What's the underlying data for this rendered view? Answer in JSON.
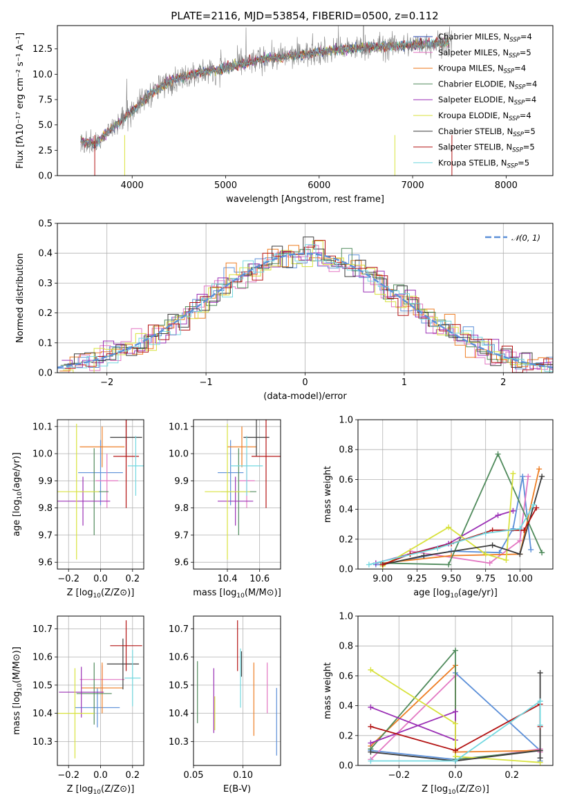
{
  "chart_data": [
    {
      "id": "spectrum",
      "type": "line",
      "title": "PLATE=2116, MJD=53854, FIBERID=0500, z=0.112",
      "xlabel": "wavelength [Angstrom, rest frame]",
      "ylabel": "Flux [fλ10⁻¹⁷ erg cm⁻² s⁻¹ A⁻¹]",
      "xlim": [
        3200,
        8500
      ],
      "ylim": [
        0,
        14.8
      ],
      "xticks": [
        4000,
        5000,
        6000,
        7000,
        8000
      ],
      "yticks": [
        0.0,
        2.5,
        5.0,
        7.5,
        10.0,
        12.5
      ],
      "ytick_labels": [
        "0.0",
        "2.5",
        "5.0",
        "7.5",
        "10.0",
        "12.5"
      ],
      "continuum": {
        "x": [
          3450,
          3600,
          3800,
          4000,
          4200,
          4400,
          4600,
          4800,
          5000,
          5200,
          5400,
          5600,
          5800,
          6000,
          6200,
          6400,
          6600,
          6800,
          7000,
          7200,
          7400
        ],
        "y": [
          3.4,
          3.1,
          4.8,
          6.4,
          8.1,
          9.3,
          9.9,
          10.3,
          10.6,
          11.1,
          11.5,
          11.7,
          11.9,
          12.2,
          12.4,
          12.6,
          12.7,
          12.8,
          12.9,
          13.0,
          13.1
        ]
      },
      "legend": {
        "placement": "upper right",
        "entries": [
          {
            "pre": "Chabrier MILES, N",
            "sub": "SSP",
            "post": "=4",
            "color": "#1f3fa8"
          },
          {
            "pre": "Salpeter MILES, N",
            "sub": "SSP",
            "post": "=5",
            "color": "#e377c2"
          },
          {
            "pre": "Kroupa MILES, N",
            "sub": "SSP",
            "post": "=4",
            "color": "#ee7d22"
          },
          {
            "pre": "Chabrier ELODIE, N",
            "sub": "SSP",
            "post": "=4",
            "color": "#4f8a5b"
          },
          {
            "pre": "Salpeter ELODIE, N",
            "sub": "SSP",
            "post": "=4",
            "color": "#9a2fb5"
          },
          {
            "pre": "Kroupa ELODIE, N",
            "sub": "SSP",
            "post": "=4",
            "color": "#d8e23c"
          },
          {
            "pre": "Chabrier STELIB, N",
            "sub": "SSP",
            "post": "=5",
            "color": "#3a3a3a"
          },
          {
            "pre": "Salpeter STELIB, N",
            "sub": "SSP",
            "post": "=5",
            "color": "#b31212"
          },
          {
            "pre": "Kroupa STELIB, N",
            "sub": "SSP",
            "post": "=5",
            "color": "#72d8e0"
          }
        ]
      }
    },
    {
      "id": "residuals",
      "type": "line",
      "xlabel": "(data-model)/error",
      "ylabel": "Normed distribution",
      "xlim": [
        -2.5,
        2.5
      ],
      "ylim": [
        0,
        0.5
      ],
      "xticks": [
        -2,
        -1,
        0,
        1,
        2
      ],
      "xtick_labels": [
        "−2",
        "−1",
        "0",
        "1",
        "2"
      ],
      "yticks": [
        0.0,
        0.1,
        0.2,
        0.3,
        0.4,
        0.5
      ],
      "ytick_labels": [
        "0.0",
        "0.1",
        "0.2",
        "0.3",
        "0.4",
        "0.5"
      ],
      "grid": true,
      "legend": {
        "placement": "upper right",
        "label": "𝒩(0, 1)",
        "color": "#5b8fd8"
      }
    },
    {
      "id": "age-vs-Z",
      "type": "scatter",
      "xlabel_pre": "Z [log",
      "xlabel_sub": "10",
      "xlabel_post": "(Z/Z⊙)]",
      "ylabel_pre": "age  [log",
      "ylabel_sub": "10",
      "ylabel_post": "(age/yr)]",
      "xlim": [
        -0.27,
        0.27
      ],
      "ylim": [
        9.575,
        10.125
      ],
      "xticks": [
        -0.2,
        0.0,
        0.2
      ],
      "xtick_labels": [
        "−0.2",
        "0.0",
        "0.2"
      ],
      "yticks": [
        9.6,
        9.7,
        9.8,
        9.9,
        10.0,
        10.1
      ],
      "ytick_labels": [
        "9.6",
        "9.7",
        "9.8",
        "9.9",
        "10.0",
        "10.1"
      ],
      "grid": true,
      "points": [
        {
          "x": 0.0,
          "xerr": 0.14,
          "y": 9.93,
          "yerr": 0.12,
          "color": "#5b8fd8"
        },
        {
          "x": 0.04,
          "xerr": 0.07,
          "y": 9.9,
          "yerr": 0.1,
          "color": "#e377c2"
        },
        {
          "x": 0.01,
          "xerr": 0.14,
          "y": 10.025,
          "yerr": 0.075,
          "color": "#ee7d22"
        },
        {
          "x": -0.04,
          "xerr": 0.09,
          "y": 9.86,
          "yerr": 0.16,
          "color": "#4f8a5b"
        },
        {
          "x": -0.11,
          "xerr": 0.17,
          "y": 9.825,
          "yerr": 0.09,
          "color": "#9a2fb5"
        },
        {
          "x": -0.15,
          "xerr": 0.14,
          "y": 9.86,
          "yerr": 0.25,
          "color": "#d8e23c"
        },
        {
          "x": 0.16,
          "xerr": 0.1,
          "y": 10.06,
          "yerr": 0.07,
          "color": "#3a3a3a"
        },
        {
          "x": 0.16,
          "xerr": 0.08,
          "y": 9.99,
          "yerr": 0.19,
          "color": "#b31212"
        },
        {
          "x": 0.22,
          "xerr": 0.05,
          "y": 9.955,
          "yerr": 0.11,
          "color": "#72d8e0"
        }
      ]
    },
    {
      "id": "age-vs-mass",
      "type": "scatter",
      "xlabel_pre": "mass [log",
      "xlabel_sub": "10",
      "xlabel_post": "(M/M⊙)]",
      "xlim": [
        10.19,
        10.73
      ],
      "ylim": [
        9.575,
        10.125
      ],
      "xticks": [
        10.4,
        10.6
      ],
      "xtick_labels": [
        "10.4",
        "10.6"
      ],
      "yticks": [
        9.6,
        9.7,
        9.8,
        9.9,
        10.0,
        10.1
      ],
      "ytick_labels": [
        "9.6",
        "9.7",
        "9.8",
        "9.9",
        "10.0",
        "10.1"
      ],
      "grid": true,
      "points": [
        {
          "x": 10.42,
          "xerr": 0.08,
          "y": 9.93,
          "yerr": 0.12,
          "color": "#5b8fd8"
        },
        {
          "x": 10.52,
          "xerr": 0.05,
          "y": 9.9,
          "yerr": 0.1,
          "color": "#e377c2"
        },
        {
          "x": 10.49,
          "xerr": 0.09,
          "y": 10.025,
          "yerr": 0.075,
          "color": "#ee7d22"
        },
        {
          "x": 10.47,
          "xerr": 0.11,
          "y": 9.86,
          "yerr": 0.16,
          "color": "#4f8a5b"
        },
        {
          "x": 10.45,
          "xerr": 0.11,
          "y": 9.825,
          "yerr": 0.09,
          "color": "#9a2fb5"
        },
        {
          "x": 10.4,
          "xerr": 0.14,
          "y": 9.86,
          "yerr": 0.25,
          "color": "#d8e23c"
        },
        {
          "x": 10.58,
          "xerr": 0.08,
          "y": 10.06,
          "yerr": 0.07,
          "color": "#3a3a3a"
        },
        {
          "x": 10.64,
          "xerr": 0.09,
          "y": 9.99,
          "yerr": 0.19,
          "color": "#b31212"
        },
        {
          "x": 10.52,
          "xerr": 0.1,
          "y": 9.955,
          "yerr": 0.11,
          "color": "#72d8e0"
        }
      ]
    },
    {
      "id": "weight-vs-age",
      "type": "line",
      "xlabel_pre": "age  [log",
      "xlabel_sub": "10",
      "xlabel_post": "(age/yr)]",
      "ylabel": "mass weight",
      "xlim": [
        8.82,
        10.24
      ],
      "ylim": [
        0,
        1.0
      ],
      "xticks": [
        9.0,
        9.25,
        9.5,
        9.75,
        10.0
      ],
      "xtick_labels": [
        "9.00",
        "9.25",
        "9.50",
        "9.75",
        "10.00"
      ],
      "yticks": [
        0.0,
        0.2,
        0.4,
        0.6,
        0.8,
        1.0
      ],
      "ytick_labels": [
        "0.0",
        "0.2",
        "0.4",
        "0.6",
        "0.8",
        "1.0"
      ],
      "grid": true,
      "series": [
        {
          "color": "#5b8fd8",
          "x": [
            8.95,
            9.0,
            9.5,
            9.85,
            9.95,
            10.02,
            10.08
          ],
          "y": [
            0.03,
            0.03,
            0.12,
            0.11,
            0.27,
            0.62,
            0.13
          ]
        },
        {
          "color": "#e377c2",
          "x": [
            9.2,
            9.78,
            10.0,
            10.06
          ],
          "y": [
            0.12,
            0.04,
            0.19,
            0.62
          ]
        },
        {
          "color": "#ee7d22",
          "x": [
            9.0,
            9.5,
            10.0,
            10.14
          ],
          "y": [
            0.04,
            0.09,
            0.1,
            0.67
          ]
        },
        {
          "color": "#4f8a5b",
          "x": [
            9.0,
            9.48,
            9.84,
            10.16
          ],
          "y": [
            0.04,
            0.03,
            0.77,
            0.11
          ]
        },
        {
          "color": "#9a2fb5",
          "x": [
            8.95,
            9.48,
            9.84,
            9.95
          ],
          "y": [
            0.04,
            0.17,
            0.36,
            0.39
          ]
        },
        {
          "color": "#d8e23c",
          "x": [
            9.0,
            9.48,
            9.75,
            9.9,
            9.95
          ],
          "y": [
            0.02,
            0.28,
            0.1,
            0.06,
            0.64
          ]
        },
        {
          "color": "#3a3a3a",
          "x": [
            9.0,
            9.3,
            9.8,
            10.0,
            10.16
          ],
          "y": [
            0.03,
            0.09,
            0.16,
            0.1,
            0.62
          ]
        },
        {
          "color": "#b31212",
          "x": [
            9.0,
            9.2,
            9.5,
            9.8,
            10.03,
            10.12
          ],
          "y": [
            0.03,
            0.1,
            0.17,
            0.26,
            0.26,
            0.41
          ]
        },
        {
          "color": "#72d8e0",
          "x": [
            8.9,
            9.4,
            9.75,
            10.0,
            10.1
          ],
          "y": [
            0.03,
            0.14,
            0.24,
            0.27,
            0.43
          ]
        }
      ]
    },
    {
      "id": "mass-vs-Z",
      "type": "scatter",
      "xlabel_pre": "Z [log",
      "xlabel_sub": "10",
      "xlabel_post": "(Z/Z⊙)]",
      "ylabel_pre": "mass [log",
      "ylabel_sub": "10",
      "ylabel_post": "(M/M⊙)]",
      "xlim": [
        -0.27,
        0.27
      ],
      "ylim": [
        10.215,
        10.745
      ],
      "xticks": [
        -0.2,
        0.0,
        0.2
      ],
      "xtick_labels": [
        "−0.2",
        "0.0",
        "0.2"
      ],
      "yticks": [
        10.3,
        10.4,
        10.5,
        10.6,
        10.7
      ],
      "ytick_labels": [
        "10.3",
        "10.4",
        "10.5",
        "10.6",
        "10.7"
      ],
      "grid": true,
      "points": [
        {
          "x": -0.02,
          "xerr": 0.14,
          "y": 10.42,
          "yerr": 0.07,
          "color": "#5b8fd8"
        },
        {
          "x": 0.01,
          "xerr": 0.14,
          "y": 10.52,
          "yerr": 0.05,
          "color": "#e377c2"
        },
        {
          "x": 0.01,
          "xerr": 0.13,
          "y": 10.49,
          "yerr": 0.09,
          "color": "#ee7d22"
        },
        {
          "x": -0.04,
          "xerr": 0.11,
          "y": 10.47,
          "yerr": 0.11,
          "color": "#4f8a5b"
        },
        {
          "x": -0.12,
          "xerr": 0.14,
          "y": 10.475,
          "yerr": 0.09,
          "color": "#9a2fb5"
        },
        {
          "x": -0.16,
          "xerr": 0.12,
          "y": 10.4,
          "yerr": 0.16,
          "color": "#d8e23c"
        },
        {
          "x": 0.14,
          "xerr": 0.1,
          "y": 10.575,
          "yerr": 0.09,
          "color": "#3a3a3a"
        },
        {
          "x": 0.16,
          "xerr": 0.1,
          "y": 10.64,
          "yerr": 0.09,
          "color": "#b31212"
        },
        {
          "x": 0.2,
          "xerr": 0.05,
          "y": 10.525,
          "yerr": 0.1,
          "color": "#72d8e0"
        }
      ]
    },
    {
      "id": "mass-vs-ebv",
      "type": "scatter",
      "xlabel": "E(B-V)",
      "xlim": [
        0.05,
        0.138
      ],
      "ylim": [
        10.215,
        10.745
      ],
      "xticks": [
        0.05,
        0.1
      ],
      "xtick_labels": [
        "0.05",
        "0.10"
      ],
      "yticks": [
        10.3,
        10.4,
        10.5,
        10.6,
        10.7
      ],
      "ytick_labels": [
        "10.3",
        "10.4",
        "10.5",
        "10.6",
        "10.7"
      ],
      "grid": true,
      "points": [
        {
          "x": 0.134,
          "y": 10.37,
          "yerr": 0.12,
          "color": "#5b8fd8"
        },
        {
          "x": 0.1245,
          "y": 10.49,
          "yerr": 0.09,
          "color": "#e377c2"
        },
        {
          "x": 0.111,
          "y": 10.45,
          "yerr": 0.13,
          "color": "#ee7d22"
        },
        {
          "x": 0.054,
          "y": 10.475,
          "yerr": 0.11,
          "color": "#4f8a5b"
        },
        {
          "x": 0.0705,
          "y": 10.445,
          "yerr": 0.115,
          "color": "#9a2fb5"
        },
        {
          "x": 0.0715,
          "y": 10.4,
          "yerr": 0.06,
          "color": "#d8e23c"
        },
        {
          "x": 0.0985,
          "y": 10.575,
          "yerr": 0.045,
          "color": "#3a3a3a"
        },
        {
          "x": 0.0945,
          "y": 10.64,
          "yerr": 0.09,
          "color": "#b31212"
        },
        {
          "x": 0.0975,
          "y": 10.525,
          "yerr": 0.105,
          "color": "#72d8e0"
        }
      ]
    },
    {
      "id": "weight-vs-Z",
      "type": "line",
      "xlabel_pre": "Z [log",
      "xlabel_sub": "10",
      "xlabel_post": "(Z/Z⊙)]",
      "ylabel": "mass weight",
      "xlim": [
        -0.345,
        0.345
      ],
      "ylim": [
        0,
        1.0
      ],
      "xticks": [
        -0.2,
        0.0,
        0.2
      ],
      "xtick_labels": [
        "−0.2",
        "0.0",
        "0.2"
      ],
      "yticks": [
        0.0,
        0.2,
        0.4,
        0.6,
        0.8,
        1.0
      ],
      "ytick_labels": [
        "0.0",
        "0.2",
        "0.4",
        "0.6",
        "0.8",
        "1.0"
      ],
      "grid": true,
      "series": [
        {
          "color": "#5b8fd8",
          "x": [
            -0.3,
            0.0,
            0.0,
            0.3,
            0.3
          ],
          "y": [
            0.1,
            0.04,
            0.62,
            0.1,
            0.03
          ]
        },
        {
          "color": "#e377c2",
          "x": [
            -0.3,
            0.0,
            0.0,
            0.3,
            0.3
          ],
          "y": [
            0.04,
            0.6,
            0.03,
            0.11,
            0.09
          ]
        },
        {
          "color": "#ee7d22",
          "x": [
            -0.3,
            0.0,
            0.0,
            0.3
          ],
          "y": [
            0.13,
            0.67,
            0.09,
            0.1
          ]
        },
        {
          "color": "#4f8a5b",
          "x": [
            -0.3,
            0.0,
            0.0,
            0.3
          ],
          "y": [
            0.11,
            0.77,
            0.04,
            0.1
          ]
        },
        {
          "color": "#9a2fb5",
          "x": [
            -0.3,
            0.0,
            0.0,
            -0.3
          ],
          "y": [
            0.39,
            0.17,
            0.36,
            0.15
          ]
        },
        {
          "color": "#d8e23c",
          "x": [
            -0.3,
            0.0,
            0.0,
            0.3
          ],
          "y": [
            0.64,
            0.28,
            0.06,
            0.02
          ]
        },
        {
          "color": "#3a3a3a",
          "x": [
            -0.3,
            0.0,
            0.3,
            0.3,
            0.3
          ],
          "y": [
            0.09,
            0.03,
            0.1,
            0.62,
            0.05
          ]
        },
        {
          "color": "#b31212",
          "x": [
            -0.3,
            0.0,
            0.3,
            0.3
          ],
          "y": [
            0.26,
            0.1,
            0.41,
            0.26
          ]
        },
        {
          "color": "#72d8e0",
          "x": [
            -0.3,
            0.0,
            0.3,
            0.3
          ],
          "y": [
            0.03,
            0.03,
            0.43,
            0.27
          ]
        }
      ]
    }
  ]
}
